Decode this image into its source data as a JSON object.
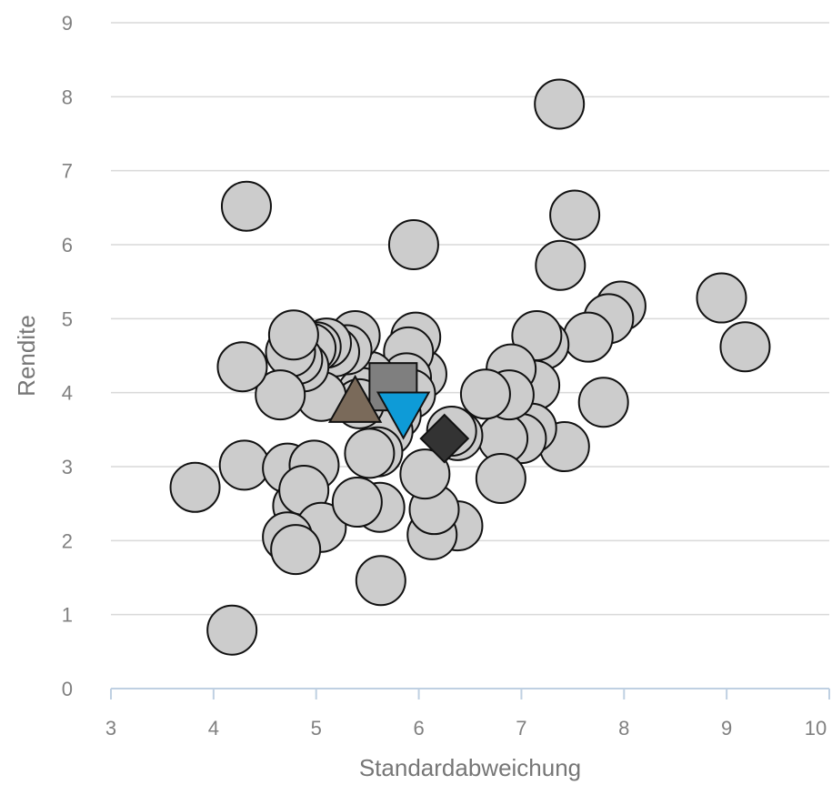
{
  "chart_data": {
    "type": "scatter",
    "xlabel": "Standardabweichung",
    "ylabel": "Rendite",
    "xlim": [
      3,
      10
    ],
    "ylim": [
      0,
      9
    ],
    "x_ticks": [
      "3",
      "4",
      "5",
      "6",
      "7",
      "8",
      "9",
      "10"
    ],
    "y_ticks": [
      "0",
      "1",
      "2",
      "3",
      "4",
      "5",
      "6",
      "7",
      "8",
      "9"
    ],
    "grid": "horizontal",
    "colors": {
      "grid": "#d9d9d9",
      "axis_line": "#bfd0e2",
      "point_fill": "#cccccc",
      "point_stroke": "#111111",
      "square": "#7f7f7f",
      "triangle_up": "#7a6a5a",
      "triangle_down": "#0e9bd7",
      "diamond": "#333333"
    },
    "series": [
      {
        "marker": "circle",
        "points": [
          [
            7.37,
            7.9
          ],
          [
            4.32,
            6.52
          ],
          [
            5.95,
            6.0
          ],
          [
            7.52,
            6.4
          ],
          [
            7.38,
            5.72
          ],
          [
            8.95,
            5.28
          ],
          [
            9.18,
            4.62
          ],
          [
            7.97,
            5.17
          ],
          [
            7.85,
            5.0
          ],
          [
            7.65,
            4.75
          ],
          [
            7.22,
            4.65
          ],
          [
            7.15,
            4.77
          ],
          [
            7.13,
            4.1
          ],
          [
            7.8,
            3.87
          ],
          [
            7.42,
            3.27
          ],
          [
            7.1,
            3.52
          ],
          [
            7.0,
            3.38
          ],
          [
            6.82,
            3.38
          ],
          [
            6.8,
            2.84
          ],
          [
            6.9,
            4.32
          ],
          [
            6.88,
            3.97
          ],
          [
            6.65,
            3.98
          ],
          [
            6.38,
            3.42
          ],
          [
            6.32,
            3.48
          ],
          [
            6.38,
            2.2
          ],
          [
            6.13,
            2.08
          ],
          [
            6.15,
            2.42
          ],
          [
            6.06,
            2.9
          ],
          [
            6.03,
            4.25
          ],
          [
            5.97,
            4.75
          ],
          [
            5.9,
            4.55
          ],
          [
            5.88,
            4.2
          ],
          [
            5.92,
            3.98
          ],
          [
            5.78,
            3.7
          ],
          [
            5.7,
            3.48
          ],
          [
            5.6,
            3.2
          ],
          [
            5.52,
            3.18
          ],
          [
            5.52,
            4.22
          ],
          [
            5.45,
            4.0
          ],
          [
            5.42,
            3.85
          ],
          [
            5.38,
            4.77
          ],
          [
            5.3,
            4.58
          ],
          [
            5.18,
            4.55
          ],
          [
            5.1,
            4.67
          ],
          [
            5.05,
            3.95
          ],
          [
            5.0,
            4.62
          ],
          [
            4.95,
            4.6
          ],
          [
            4.88,
            4.35
          ],
          [
            4.82,
            4.45
          ],
          [
            4.75,
            4.55
          ],
          [
            4.78,
            4.78
          ],
          [
            4.65,
            3.97
          ],
          [
            4.28,
            4.35
          ],
          [
            4.3,
            3.02
          ],
          [
            4.72,
            2.98
          ],
          [
            4.98,
            3.02
          ],
          [
            4.82,
            2.47
          ],
          [
            4.88,
            2.68
          ],
          [
            5.05,
            2.18
          ],
          [
            4.72,
            2.05
          ],
          [
            4.8,
            1.88
          ],
          [
            5.62,
            2.45
          ],
          [
            5.4,
            2.52
          ],
          [
            5.63,
            1.46
          ],
          [
            3.82,
            2.72
          ],
          [
            4.18,
            0.79
          ]
        ]
      },
      {
        "marker": "square",
        "points": [
          [
            5.75,
            4.08
          ]
        ]
      },
      {
        "marker": "triangle-up",
        "points": [
          [
            5.38,
            3.85
          ]
        ]
      },
      {
        "marker": "triangle-down",
        "points": [
          [
            5.85,
            3.78
          ]
        ]
      },
      {
        "marker": "diamond",
        "points": [
          [
            6.25,
            3.38
          ]
        ]
      }
    ]
  }
}
